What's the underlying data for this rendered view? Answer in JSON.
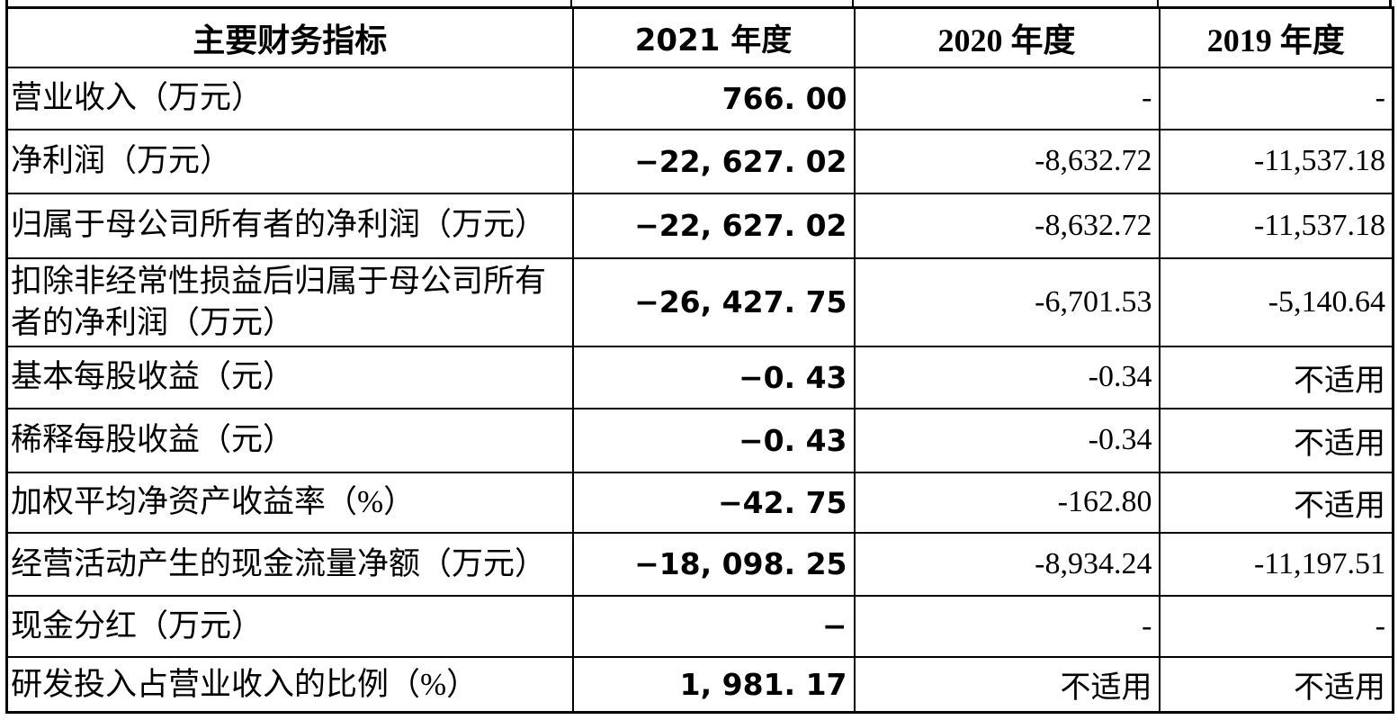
{
  "table": {
    "columns": [
      {
        "key": "indicator",
        "label": "主要财务指标"
      },
      {
        "key": "y2021",
        "label": "2021 年度"
      },
      {
        "key": "y2020",
        "label": "2020 年度"
      },
      {
        "key": "y2019",
        "label": "2019 年度"
      }
    ],
    "rows": [
      {
        "indicator": "营业收入（万元）",
        "y2021": "766. 00",
        "y2020": "-",
        "y2019": "-"
      },
      {
        "indicator": "净利润（万元）",
        "y2021": "−22, 627. 02",
        "y2020": "-8,632.72",
        "y2019": "-11,537.18"
      },
      {
        "indicator": "归属于母公司所有者的净利润（万元）",
        "y2021": "−22, 627. 02",
        "y2020": "-8,632.72",
        "y2019": "-11,537.18"
      },
      {
        "indicator": "扣除非经常性损益后归属于母公司所有\n者的净利润（万元）",
        "y2021": "−26, 427. 75",
        "y2020": "-6,701.53",
        "y2019": "-5,140.64"
      },
      {
        "indicator": "基本每股收益（元）",
        "y2021": "−0. 43",
        "y2020": "-0.34",
        "y2019": "不适用"
      },
      {
        "indicator": "稀释每股收益（元）",
        "y2021": "−0. 43",
        "y2020": "-0.34",
        "y2019": "不适用"
      },
      {
        "indicator": "加权平均净资产收益率（%）",
        "y2021": "−42. 75",
        "y2020": "-162.80",
        "y2019": "不适用"
      },
      {
        "indicator": "经营活动产生的现金流量净额（万元）",
        "y2021": "−18, 098. 25",
        "y2020": "-8,934.24",
        "y2019": "-11,197.51"
      },
      {
        "indicator": "现金分红（万元）",
        "y2021": "−",
        "y2020": "-",
        "y2019": "-"
      },
      {
        "indicator": "研发投入占营业收入的比例（%）",
        "y2021": "1, 981. 17",
        "y2020": "不适用",
        "y2019": "不适用"
      }
    ]
  }
}
